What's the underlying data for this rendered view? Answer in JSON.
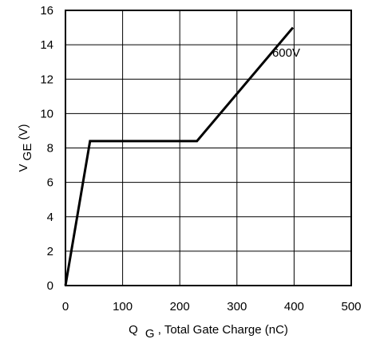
{
  "chart_data": {
    "type": "line",
    "xlabel_main": "Q",
    "xlabel_sub": "G",
    "xlabel_rest": ", Total Gate Charge (nC)",
    "ylabel_main": "V",
    "ylabel_sub": "GE",
    "ylabel_rest": " (V)",
    "xlim": [
      0,
      500
    ],
    "ylim": [
      0,
      16
    ],
    "x_ticks": [
      0,
      100,
      200,
      300,
      400,
      500
    ],
    "y_ticks": [
      0,
      2,
      4,
      6,
      8,
      10,
      12,
      14,
      16
    ],
    "grid": true,
    "series": [
      {
        "name": "600V",
        "x": [
          0,
          43,
          230,
          398
        ],
        "y": [
          0,
          8.4,
          8.4,
          15
        ]
      }
    ],
    "annotation": {
      "text": "600V",
      "x": 398,
      "y": 13.6
    }
  }
}
